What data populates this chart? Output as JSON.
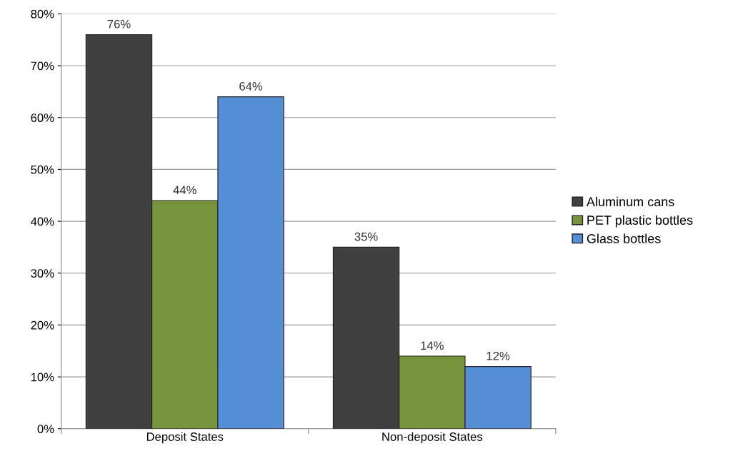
{
  "chart_data": {
    "type": "bar",
    "categories": [
      "Deposit States",
      "Non-deposit States"
    ],
    "series": [
      {
        "name": "Aluminum cans",
        "color": "#404040",
        "values": [
          76,
          35
        ]
      },
      {
        "name": "PET plastic bottles",
        "color": "#77933c",
        "values": [
          44,
          14
        ]
      },
      {
        "name": "Glass bottles",
        "color": "#558ed5",
        "values": [
          64,
          12
        ]
      }
    ],
    "ylim": [
      0,
      80
    ],
    "yticks": [
      {
        "value": 0,
        "label": "0%"
      },
      {
        "value": 10,
        "label": "10%"
      },
      {
        "value": 20,
        "label": "20%"
      },
      {
        "value": 30,
        "label": "30%"
      },
      {
        "value": 40,
        "label": "40%"
      },
      {
        "value": 50,
        "label": "50%"
      },
      {
        "value": 60,
        "label": "60%"
      },
      {
        "value": 70,
        "label": "70%"
      },
      {
        "value": 80,
        "label": "80%"
      }
    ],
    "value_labels": [
      [
        "76%",
        "35%"
      ],
      [
        "44%",
        "14%"
      ],
      [
        "64%",
        "12%"
      ]
    ],
    "grid": "y",
    "legend": "right"
  }
}
